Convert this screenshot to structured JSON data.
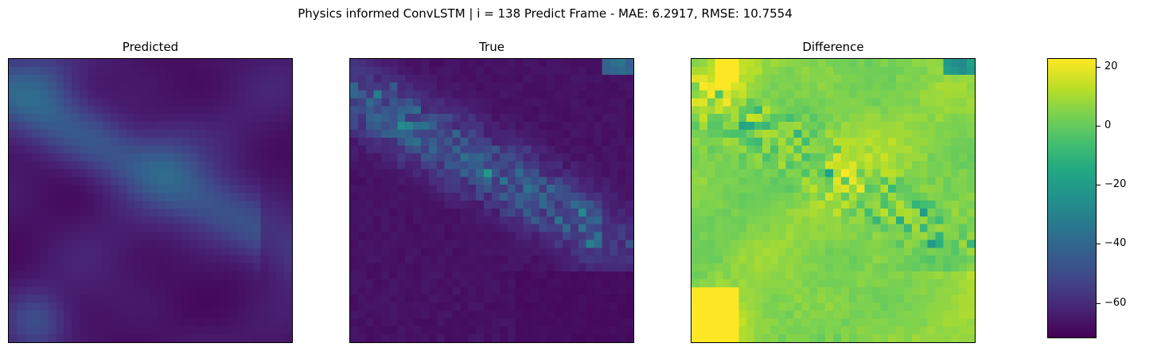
{
  "figure": {
    "title": "Physics informed ConvLSTM | i = 138 Predict Frame - MAE: 6.2917, RMSE: 10.7554"
  },
  "chart_data": [
    {
      "type": "heatmap",
      "title": "Predicted",
      "grid_size": [
        36,
        36
      ],
      "colormap": "viridis",
      "value_range": [
        -72,
        23
      ],
      "description_of_field": "smooth field mostly near -65, a diagonal band around -45 from upper-left to center-right, low lobe near -50 at bottom-left"
    },
    {
      "type": "heatmap",
      "title": "True",
      "grid_size": [
        36,
        36
      ],
      "colormap": "viridis",
      "value_range": [
        -72,
        23
      ],
      "description_of_field": "blocky field mostly near -68, diagonal band of patches between -50 and -20 along upper-left to center-right"
    },
    {
      "type": "heatmap",
      "title": "Difference",
      "grid_size": [
        36,
        36
      ],
      "colormap": "viridis",
      "value_range": [
        -72,
        23
      ],
      "description_of_field": "mostly near 5, bright spots near 20 at top-left, along diagonal band and bottom-left corner, dark patches near -40 in upper-left band"
    },
    {
      "type": "colorbar",
      "colormap": "viridis",
      "range": [
        -72,
        23
      ],
      "ticks": [
        20,
        0,
        -20,
        -40,
        -60
      ],
      "tick_labels": [
        "20",
        "0",
        "−20",
        "−40",
        "−60"
      ]
    }
  ],
  "colors": {
    "viridis": [
      "#440154",
      "#482475",
      "#414487",
      "#355f8d",
      "#2a788e",
      "#21918c",
      "#22a884",
      "#44bf70",
      "#7ad151",
      "#bddf26",
      "#fde725"
    ]
  }
}
